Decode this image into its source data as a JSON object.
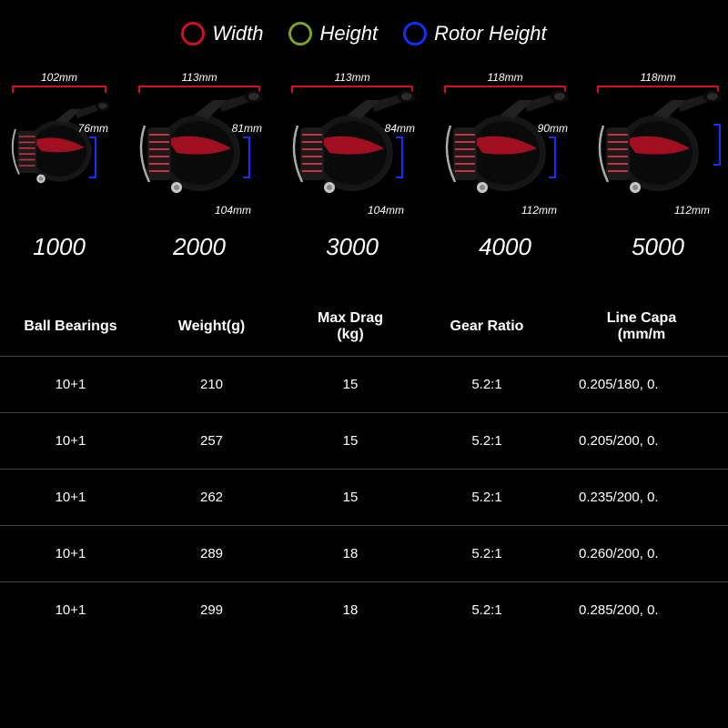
{
  "legend": {
    "width": {
      "label": "Width",
      "color": "#d01025"
    },
    "height": {
      "label": "Height",
      "color": "#7da027"
    },
    "rotor": {
      "label": "Rotor Height",
      "color": "#1030ff"
    }
  },
  "reel_graphic_colors": {
    "body_dark": "#0e0e0e",
    "body_mid": "#2a2a2a",
    "accent": "#c01020",
    "spool_line": "#d84050",
    "metal": "#b8b8b8"
  },
  "reels": [
    {
      "model": "1000",
      "width": "102mm",
      "height": "",
      "rotor": "76mm"
    },
    {
      "model": "2000",
      "width": "113mm",
      "height": "104mm",
      "rotor": "81mm"
    },
    {
      "model": "3000",
      "width": "113mm",
      "height": "104mm",
      "rotor": "84mm"
    },
    {
      "model": "4000",
      "width": "118mm",
      "height": "112mm",
      "rotor": "90mm"
    },
    {
      "model": "5000",
      "width": "118mm",
      "height": "112mm",
      "rotor": ""
    }
  ],
  "table": {
    "headers": {
      "bb": "Ball Bearings",
      "wt": "Weight(g)",
      "dr": "Max Drag\n(kg)",
      "gr": "Gear Ratio",
      "lc": "Line Capa\n(mm/m"
    },
    "rows": [
      {
        "bb": "10+1",
        "wt": "210",
        "dr": "15",
        "gr": "5.2:1",
        "lc": "0.205/180, 0."
      },
      {
        "bb": "10+1",
        "wt": "257",
        "dr": "15",
        "gr": "5.2:1",
        "lc": "0.205/200, 0."
      },
      {
        "bb": "10+1",
        "wt": "262",
        "dr": "15",
        "gr": "5.2:1",
        "lc": "0.235/200, 0."
      },
      {
        "bb": "10+1",
        "wt": "289",
        "dr": "18",
        "gr": "5.2:1",
        "lc": "0.260/200, 0."
      },
      {
        "bb": "10+1",
        "wt": "299",
        "dr": "18",
        "gr": "5.2:1",
        "lc": "0.285/200, 0."
      }
    ]
  }
}
